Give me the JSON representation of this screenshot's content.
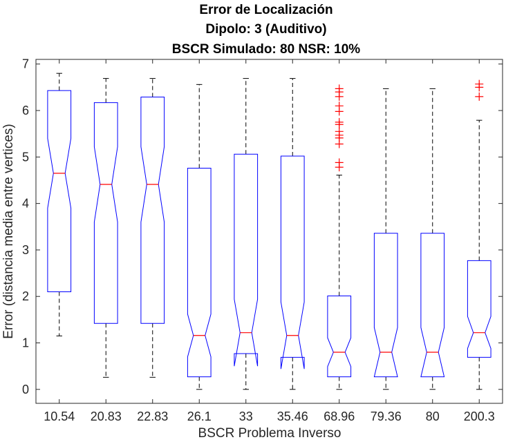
{
  "chart_data": {
    "type": "boxplot",
    "title_lines": [
      "Error de Localización",
      "Dipolo: 3 (Auditivo)",
      "BSCR Simulado: 80 NSR: 10%"
    ],
    "xlabel": "BSCR Problema Inverso",
    "ylabel": "Error (distancia media entre vertices)",
    "ylim": [
      -0.3,
      7.1
    ],
    "yticks": [
      0,
      1,
      2,
      3,
      4,
      5,
      6,
      7
    ],
    "grid": false,
    "notched": true,
    "colors": {
      "box": "#0000ff",
      "median": "#ff0000",
      "whisker": "#000000",
      "outlier": "#ff0000",
      "axis": "#262626"
    },
    "categories": [
      "10.54",
      "20.83",
      "22.83",
      "26.1",
      "33",
      "35.46",
      "68.96",
      "79.36",
      "80",
      "200.3"
    ],
    "boxes": [
      {
        "category": "10.54",
        "whisker_low": 1.15,
        "q1": 2.1,
        "median": 4.65,
        "q3": 6.43,
        "whisker_high": 6.8,
        "notch_low": 3.9,
        "notch_high": 5.4,
        "outliers": []
      },
      {
        "category": "20.83",
        "whisker_low": 0.26,
        "q1": 1.42,
        "median": 4.41,
        "q3": 6.17,
        "whisker_high": 6.69,
        "notch_low": 3.6,
        "notch_high": 5.22,
        "outliers": []
      },
      {
        "category": "22.83",
        "whisker_low": 0.26,
        "q1": 1.42,
        "median": 4.41,
        "q3": 6.29,
        "whisker_high": 6.69,
        "notch_low": 3.6,
        "notch_high": 5.22,
        "outliers": []
      },
      {
        "category": "26.1",
        "whisker_low": 0.0,
        "q1": 0.27,
        "median": 1.16,
        "q3": 4.76,
        "whisker_high": 6.56,
        "notch_low": 0.7,
        "notch_high": 1.62,
        "outliers": []
      },
      {
        "category": "33",
        "whisker_low": 0.0,
        "q1": 0.77,
        "median": 1.22,
        "q3": 5.06,
        "whisker_high": 6.69,
        "notch_low": 0.5,
        "notch_high": 1.94,
        "outliers": []
      },
      {
        "category": "35.46",
        "whisker_low": 0.0,
        "q1": 0.69,
        "median": 1.16,
        "q3": 5.02,
        "whisker_high": 6.69,
        "notch_low": 0.44,
        "notch_high": 1.88,
        "outliers": []
      },
      {
        "category": "68.96",
        "whisker_low": 0.0,
        "q1": 0.27,
        "median": 0.8,
        "q3": 2.01,
        "whisker_high": 4.61,
        "notch_low": 0.49,
        "notch_high": 1.11,
        "outliers": [
          4.78,
          4.88,
          5.28,
          5.41,
          5.47,
          5.55,
          5.7,
          5.75,
          5.98,
          6.1,
          6.3,
          6.4,
          6.47
        ]
      },
      {
        "category": "79.36",
        "whisker_low": 0.0,
        "q1": 0.27,
        "median": 0.8,
        "q3": 3.36,
        "whisker_high": 6.47,
        "notch_low": 0.27,
        "notch_high": 1.33,
        "outliers": []
      },
      {
        "category": "80",
        "whisker_low": 0.0,
        "q1": 0.27,
        "median": 0.8,
        "q3": 3.36,
        "whisker_high": 6.47,
        "notch_low": 0.27,
        "notch_high": 1.33,
        "outliers": []
      },
      {
        "category": "200.3",
        "whisker_low": 0.0,
        "q1": 0.69,
        "median": 1.22,
        "q3": 2.77,
        "whisker_high": 5.79,
        "notch_low": 0.88,
        "notch_high": 1.57,
        "outliers": [
          6.3,
          6.5,
          6.57
        ]
      }
    ]
  }
}
